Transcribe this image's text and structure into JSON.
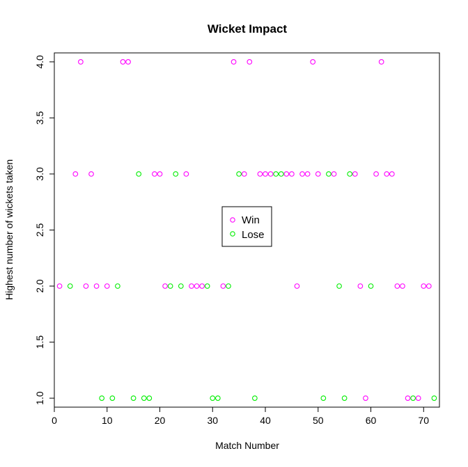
{
  "chart_data": {
    "type": "scatter",
    "title": "Wicket Impact",
    "xlabel": "Match Number",
    "ylabel": "Highest number of wickets taken",
    "xlim": [
      0,
      73
    ],
    "ylim": [
      0.92,
      4.08
    ],
    "xticks": [
      "0",
      "10",
      "20",
      "30",
      "40",
      "50",
      "60",
      "70"
    ],
    "yticks": [
      "1.0",
      "1.5",
      "2.0",
      "2.5",
      "3.0",
      "3.5",
      "4.0"
    ],
    "legend_position": "center",
    "series": [
      {
        "name": "Win",
        "color": "#ff00ff",
        "points": [
          [
            1,
            2
          ],
          [
            4,
            3
          ],
          [
            5,
            4
          ],
          [
            6,
            2
          ],
          [
            7,
            3
          ],
          [
            8,
            2
          ],
          [
            10,
            2
          ],
          [
            13,
            4
          ],
          [
            14,
            4
          ],
          [
            19,
            3
          ],
          [
            20,
            3
          ],
          [
            21,
            2
          ],
          [
            25,
            3
          ],
          [
            26,
            2
          ],
          [
            27,
            2
          ],
          [
            28,
            2
          ],
          [
            32,
            2
          ],
          [
            34,
            4
          ],
          [
            36,
            3
          ],
          [
            37,
            4
          ],
          [
            39,
            3
          ],
          [
            40,
            3
          ],
          [
            41,
            3
          ],
          [
            44,
            3
          ],
          [
            45,
            3
          ],
          [
            46,
            2
          ],
          [
            47,
            3
          ],
          [
            48,
            3
          ],
          [
            49,
            4
          ],
          [
            50,
            3
          ],
          [
            53,
            3
          ],
          [
            57,
            3
          ],
          [
            58,
            2
          ],
          [
            59,
            1
          ],
          [
            61,
            3
          ],
          [
            62,
            4
          ],
          [
            63,
            3
          ],
          [
            64,
            3
          ],
          [
            65,
            2
          ],
          [
            66,
            2
          ],
          [
            67,
            1
          ],
          [
            69,
            1
          ],
          [
            70,
            2
          ],
          [
            71,
            2
          ]
        ]
      },
      {
        "name": "Lose",
        "color": "#00ee00",
        "points": [
          [
            3,
            2
          ],
          [
            9,
            1
          ],
          [
            11,
            1
          ],
          [
            12,
            2
          ],
          [
            15,
            1
          ],
          [
            16,
            3
          ],
          [
            17,
            1
          ],
          [
            18,
            1
          ],
          [
            22,
            2
          ],
          [
            23,
            3
          ],
          [
            24,
            2
          ],
          [
            29,
            2
          ],
          [
            30,
            1
          ],
          [
            31,
            1
          ],
          [
            33,
            2
          ],
          [
            35,
            3
          ],
          [
            38,
            1
          ],
          [
            42,
            3
          ],
          [
            43,
            3
          ],
          [
            51,
            1
          ],
          [
            52,
            3
          ],
          [
            54,
            2
          ],
          [
            55,
            1
          ],
          [
            56,
            3
          ],
          [
            60,
            2
          ],
          [
            68,
            1
          ],
          [
            72,
            1
          ]
        ]
      }
    ]
  }
}
